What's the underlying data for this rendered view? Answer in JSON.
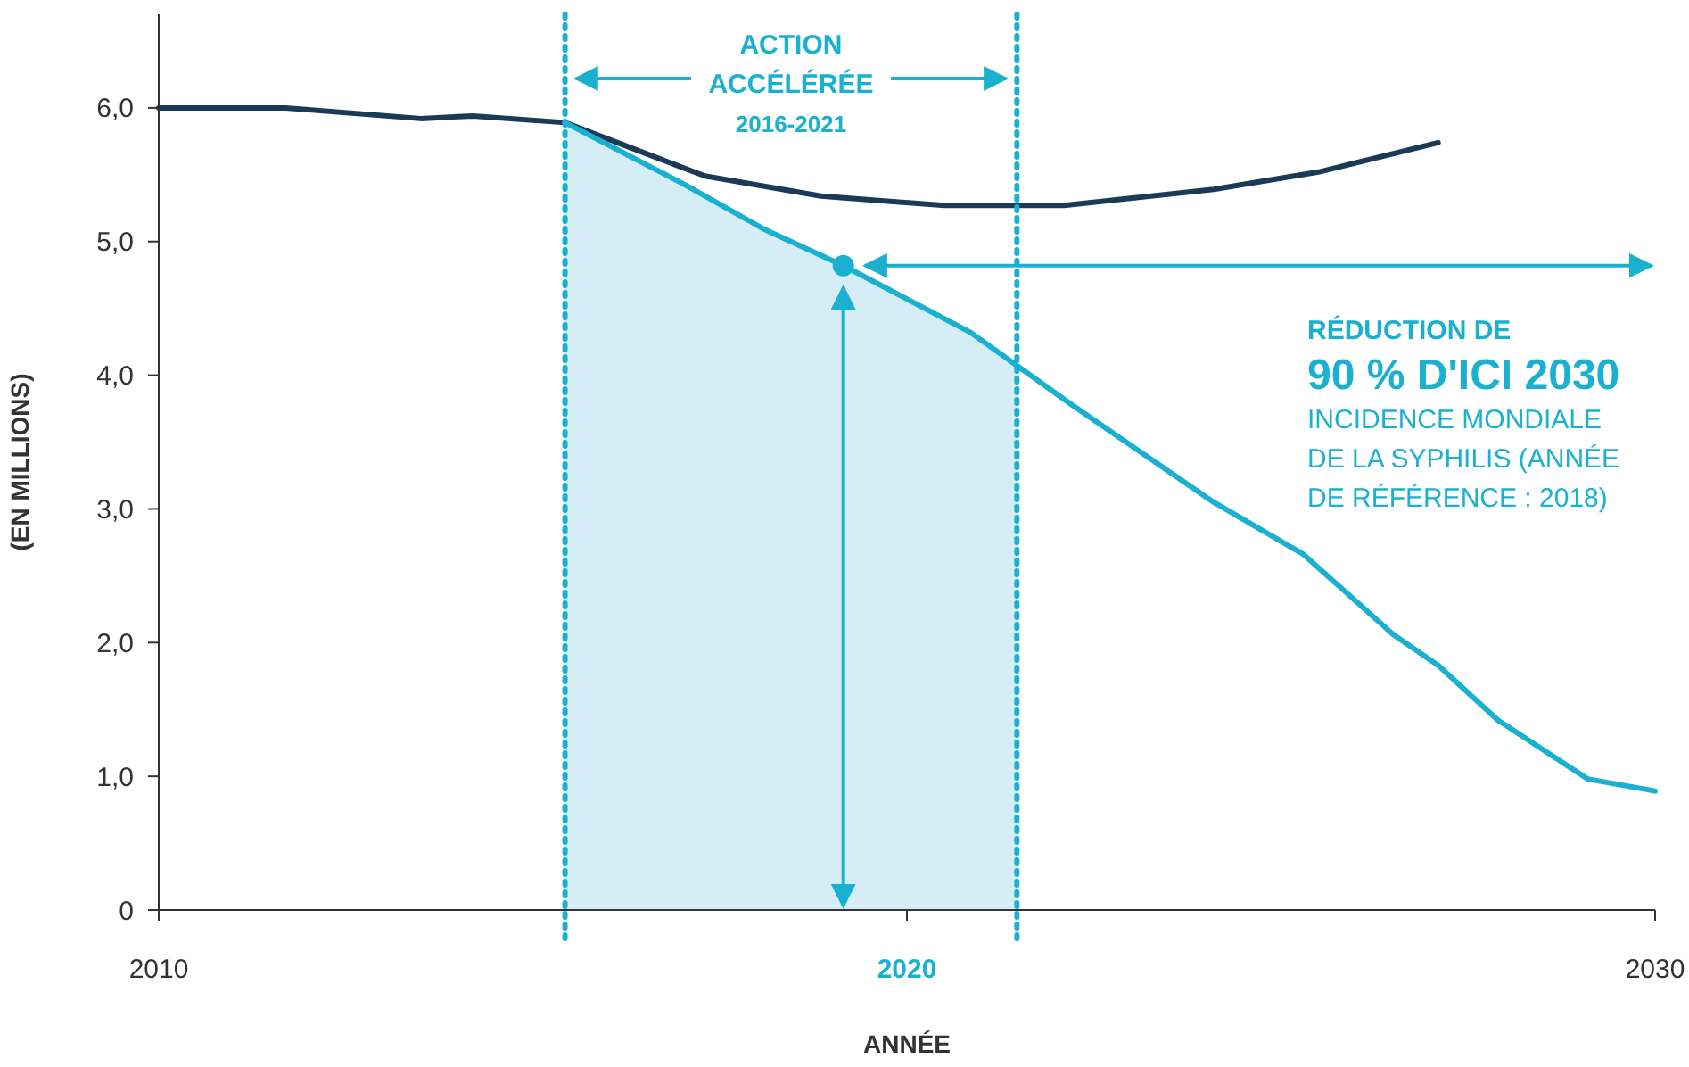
{
  "chart_data": {
    "type": "line",
    "xlabel": "ANNÉE",
    "ylabel": "(EN MILLIONS)",
    "xlim": [
      2010,
      2030
    ],
    "ylim": [
      0,
      6.7
    ],
    "xticks": [
      2010,
      2020,
      2030
    ],
    "yticks": [
      {
        "value": 0,
        "label": "0"
      },
      {
        "value": 1,
        "label": "1,0"
      },
      {
        "value": 2,
        "label": "2,0"
      },
      {
        "value": 3,
        "label": "3,0"
      },
      {
        "value": 4,
        "label": "4,0"
      },
      {
        "value": 5,
        "label": "5,0"
      },
      {
        "value": 6,
        "label": "6,0"
      }
    ],
    "grid": false,
    "marker": "none",
    "line_style": "solid",
    "series": [
      {
        "color": "#1b3a57",
        "x": [
          2010,
          2011.7,
          2013.5,
          2014.2,
          2015.43,
          2017.3,
          2018.85,
          2020.5,
          2022.1,
          2024.1,
          2025.5,
          2027.1
        ],
        "values": [
          6.0,
          6.0,
          5.92,
          5.94,
          5.89,
          5.49,
          5.34,
          5.27,
          5.27,
          5.39,
          5.52,
          5.74
        ]
      },
      {
        "color": "#1ab0d0",
        "x": [
          2015.43,
          2017.05,
          2018.1,
          2019.15,
          2020.85,
          2022.2,
          2024.1,
          2025.3,
          2026.5,
          2027.1,
          2027.9,
          2029.1,
          2030
        ],
        "values": [
          5.89,
          5.42,
          5.09,
          4.82,
          4.32,
          3.78,
          3.05,
          2.66,
          2.06,
          1.83,
          1.42,
          0.98,
          0.89
        ]
      },
      {
        "type": "scatter",
        "color": "#1ab0d0",
        "marker": "circle",
        "x": [
          2019.15
        ],
        "values": [
          4.82
        ]
      }
    ],
    "bands": [
      {
        "axis": "x",
        "from": 2015.43,
        "to": 2021.47,
        "label": "ACTION ACCÉLÉRÉE 2016-2021",
        "color": "#d5eef5"
      }
    ],
    "ref_lines": [
      {
        "axis": "x",
        "value": 2015.43,
        "color": "#1ab0d0",
        "line_style": "dotted"
      },
      {
        "axis": "x",
        "value": 2021.47,
        "color": "#1ab0d0",
        "line_style": "dotted"
      }
    ],
    "annotations": [
      "RÉDUCTION DE\n90 % D'ICI 2030\nINCIDENCE MONDIALE\nDE LA SYPHILIS (ANNÉE\nDE RÉFÉRENCE : 2018)"
    ]
  }
}
